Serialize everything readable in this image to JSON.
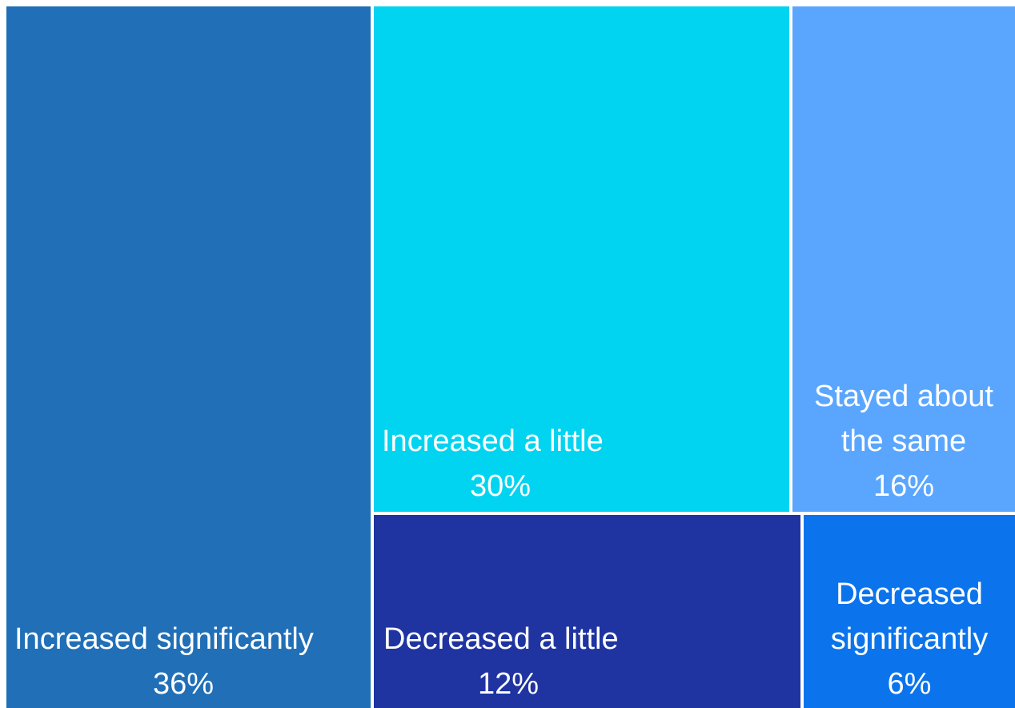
{
  "chart_data": {
    "type": "treemap",
    "title": "",
    "series": [
      {
        "label": "Increased significantly",
        "value": 36,
        "value_label": "36%",
        "color": "#206fb7"
      },
      {
        "label": "Increased a little",
        "value": 30,
        "value_label": "30%",
        "color": "#00d4f0"
      },
      {
        "label": "Stayed about the same",
        "value": 16,
        "value_label": "16%",
        "color": "#5aa6ff"
      },
      {
        "label": "Decreased a little",
        "value": 12,
        "value_label": "12%",
        "color": "#1f34a1"
      },
      {
        "label": "Decreased significantly",
        "value": 6,
        "value_label": "6%",
        "color": "#0b74ec"
      }
    ]
  },
  "tiles": {
    "increased_significantly": {
      "label_line1": "Increased significantly",
      "value": "36%"
    },
    "increased_a_little": {
      "label_line1": "Increased a little",
      "value": "30%"
    },
    "stayed_same": {
      "label_line1": "Stayed about",
      "label_line2": "the same",
      "value": "16%"
    },
    "decreased_a_little": {
      "label_line1": "Decreased a little",
      "value": "12%"
    },
    "decreased_significantly": {
      "label_line1": "Decreased",
      "label_line2": "significantly",
      "value": "6%"
    }
  }
}
